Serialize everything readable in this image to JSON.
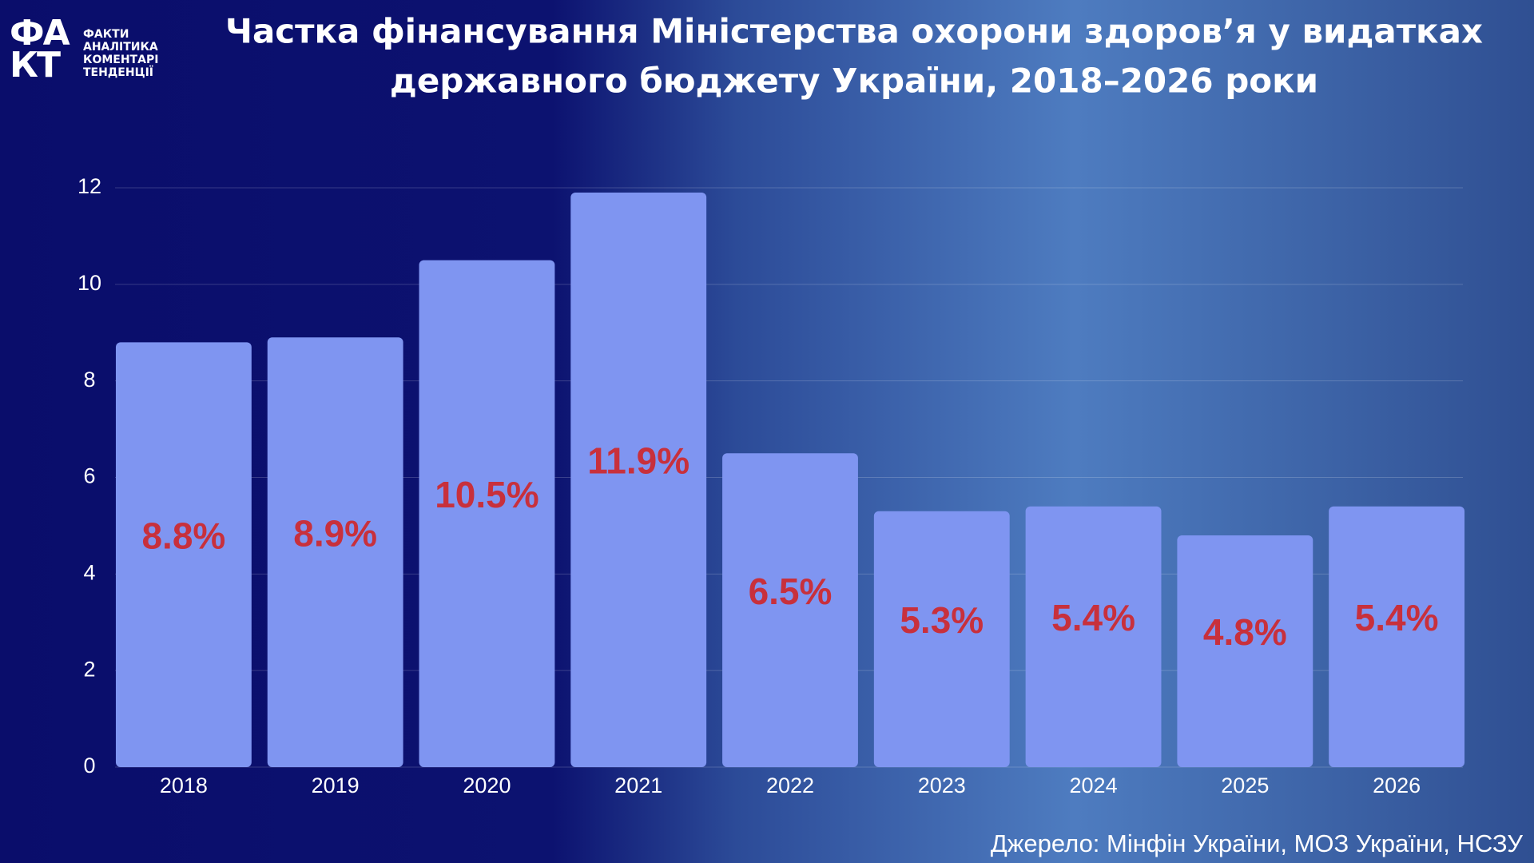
{
  "logo": {
    "mark": [
      "ФА",
      "КТ"
    ],
    "lines": [
      "ФАКТИ",
      "АНАЛІТИКА",
      "КОМЕНТАРІ",
      "ТЕНДЕНЦІЇ"
    ]
  },
  "chart_data": {
    "type": "bar",
    "title": [
      "Частка фінансування Міністерства охорони здоров’я у видатках",
      "державного бюджету України, 2018–2026 роки"
    ],
    "categories": [
      "2018",
      "2019",
      "2020",
      "2021",
      "2022",
      "2023",
      "2024",
      "2025",
      "2026"
    ],
    "values": [
      8.8,
      8.9,
      10.5,
      11.9,
      6.5,
      5.3,
      5.4,
      4.8,
      5.4
    ],
    "value_labels": [
      "8.8%",
      "8.9%",
      "10.5%",
      "11.9%",
      "6.5%",
      "5.3%",
      "5.4%",
      "4.8%",
      "5.4%"
    ],
    "color": "#7f95f1",
    "label_color": "#c8303c",
    "ylim": [
      0,
      12
    ],
    "yticks": [
      0,
      2,
      4,
      6,
      8,
      10,
      12
    ],
    "grid": true,
    "source": "Джерело: Мінфін України, МОЗ України, НСЗУ"
  }
}
